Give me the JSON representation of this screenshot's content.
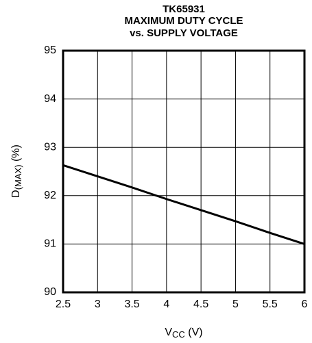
{
  "chart_data": {
    "type": "line",
    "title": [
      "TK65931",
      "MAXIMUM DUTY CYCLE",
      "vs. SUPPLY VOLTAGE"
    ],
    "xlabel": {
      "main": "V",
      "sub": "CC",
      "unit": " (V)"
    },
    "ylabel": {
      "main": "D",
      "sub": "(MAX)",
      "unit": " (%)"
    },
    "x": [
      2.5,
      3,
      3.5,
      4,
      4.5,
      5,
      5.5,
      6
    ],
    "series": [
      {
        "name": "D(MAX)",
        "color": "#000000",
        "values": [
          92.63,
          92.4,
          92.17,
          91.93,
          91.7,
          91.47,
          91.23,
          91.0
        ]
      }
    ],
    "xlim": [
      2.5,
      6
    ],
    "xticks": [
      2.5,
      3,
      3.5,
      4,
      4.5,
      5,
      5.5,
      6
    ],
    "ylim": [
      90,
      95
    ],
    "yticks": [
      90,
      91,
      92,
      93,
      94,
      95
    ],
    "grid": true
  }
}
